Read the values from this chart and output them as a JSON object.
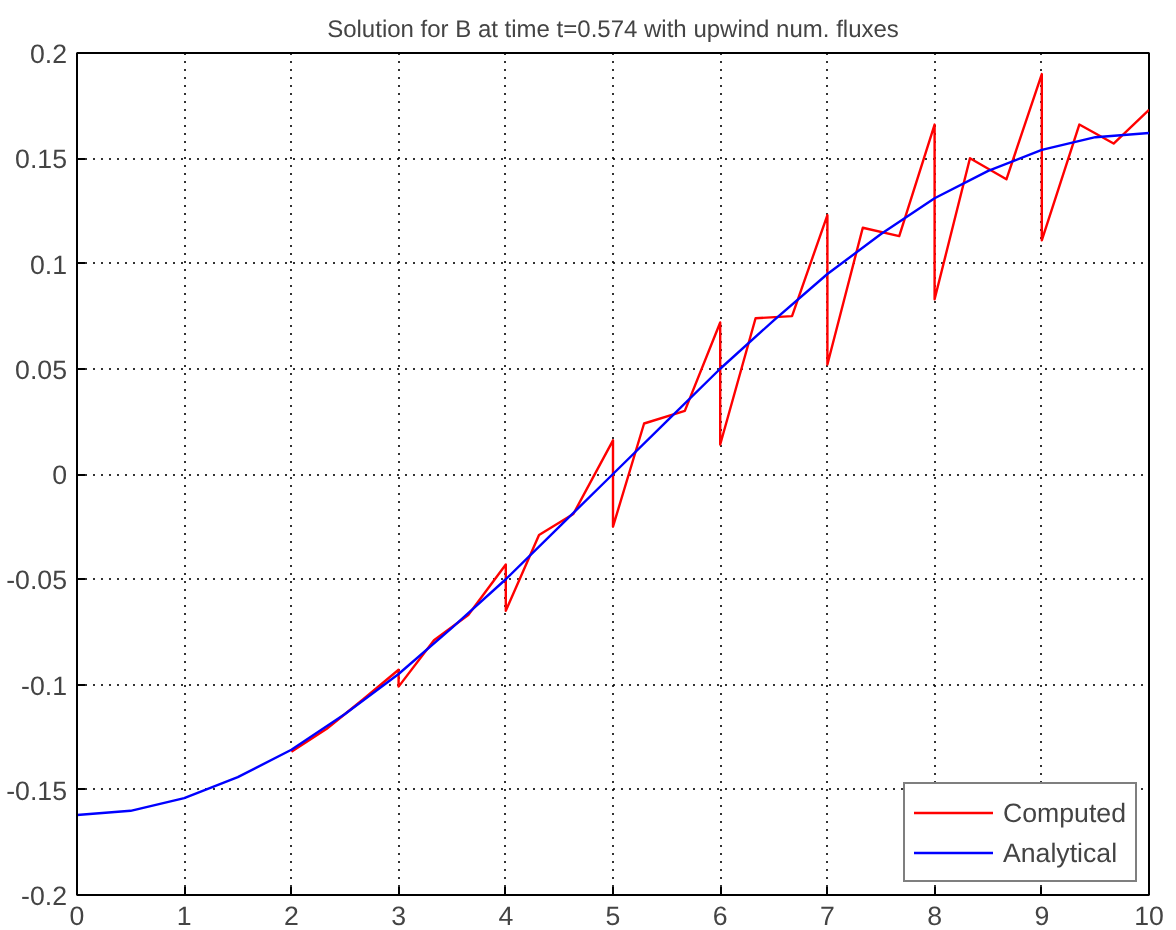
{
  "chart_data": {
    "type": "line",
    "title": "Solution for B at time t=0.574 with upwind num. fluxes",
    "xlim": [
      0,
      10
    ],
    "ylim": [
      -0.2,
      0.2
    ],
    "xticks": [
      0,
      1,
      2,
      3,
      4,
      5,
      6,
      7,
      8,
      9,
      10
    ],
    "yticks": [
      -0.2,
      -0.15,
      -0.1,
      -0.05,
      0,
      0.05,
      0.1,
      0.15,
      0.2
    ],
    "grid": true,
    "legend": "bottom right",
    "line_style": "solid",
    "marker": "none",
    "series": [
      {
        "name": "Computed",
        "color": "#ff0000",
        "x": [
          2,
          2.33,
          2.67,
          3,
          3,
          3.33,
          3.65,
          4,
          4,
          4.31,
          4.63,
          5,
          5,
          5.29,
          5.67,
          6,
          6,
          6.33,
          6.67,
          7,
          7,
          7.33,
          7.67,
          8,
          8,
          8.33,
          8.67,
          9,
          9,
          9.35,
          9.67,
          10
        ],
        "values": [
          -0.132,
          -0.121,
          -0.107,
          -0.093,
          -0.101,
          -0.079,
          -0.067,
          -0.043,
          -0.065,
          -0.029,
          -0.019,
          0.016,
          -0.025,
          0.024,
          0.03,
          0.072,
          0.014,
          0.074,
          0.075,
          0.123,
          0.052,
          0.117,
          0.113,
          0.166,
          0.083,
          0.15,
          0.14,
          0.19,
          0.111,
          0.166,
          0.157,
          0.173
        ]
      },
      {
        "name": "Analytical",
        "color": "#0000ff",
        "x": [
          0,
          0.5,
          1,
          1.5,
          2,
          2.5,
          3,
          3.5,
          4,
          4.5,
          5,
          5.5,
          6,
          6.5,
          7,
          7.5,
          8,
          8.5,
          9,
          9.5,
          10
        ],
        "values": [
          -0.162,
          -0.16,
          -0.154,
          -0.144,
          -0.131,
          -0.114,
          -0.095,
          -0.073,
          -0.05,
          -0.025,
          0.0,
          0.025,
          0.05,
          0.073,
          0.095,
          0.114,
          0.131,
          0.144,
          0.154,
          0.16,
          0.162
        ]
      }
    ]
  }
}
